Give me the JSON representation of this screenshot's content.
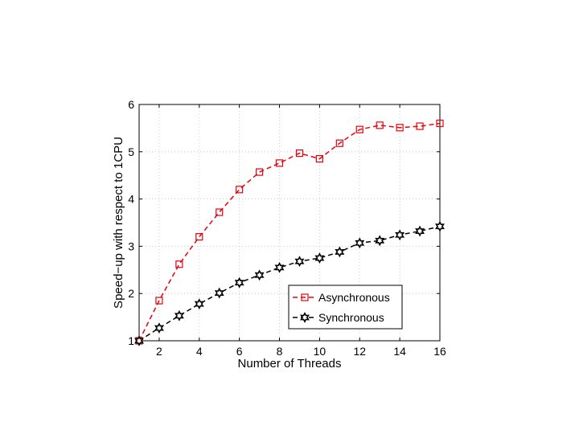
{
  "chart_data": {
    "type": "line",
    "title": "",
    "xlabel": "Number of Threads",
    "ylabel": "Speed−up with respect to 1CPU",
    "xlim": [
      1,
      16
    ],
    "ylim": [
      1,
      6
    ],
    "xticks": [
      2,
      4,
      6,
      8,
      10,
      12,
      14,
      16
    ],
    "yticks": [
      1,
      2,
      3,
      4,
      5,
      6
    ],
    "grid": true,
    "legend_position": "bottom-right",
    "x": [
      1,
      2,
      3,
      4,
      5,
      6,
      7,
      8,
      9,
      10,
      11,
      12,
      13,
      14,
      15,
      16
    ],
    "series": [
      {
        "name": "Asynchronous",
        "color": "#e8000b",
        "marker": "square",
        "line_style": "dashed",
        "values": [
          1.0,
          1.85,
          2.62,
          3.2,
          3.72,
          4.2,
          4.57,
          4.76,
          4.97,
          4.85,
          5.18,
          5.47,
          5.56,
          5.51,
          5.54,
          5.6
        ]
      },
      {
        "name": "Synchronous",
        "color": "#000000",
        "marker": "hexagram",
        "line_style": "dashed",
        "values": [
          1.0,
          1.27,
          1.53,
          1.78,
          2.01,
          2.23,
          2.39,
          2.55,
          2.68,
          2.75,
          2.88,
          3.07,
          3.12,
          3.24,
          3.32,
          3.42
        ]
      }
    ]
  }
}
